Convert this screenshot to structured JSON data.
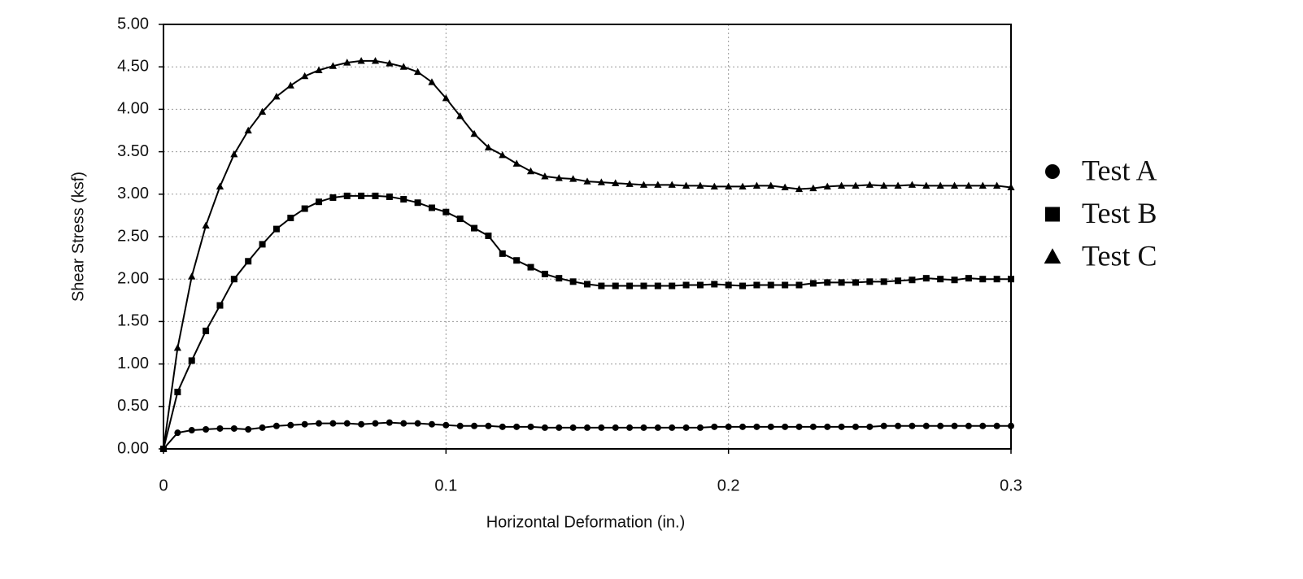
{
  "chart_data": {
    "type": "line",
    "x_label": "Horizontal Deformation (in.)",
    "y_label": "Shear Stress (ksf)",
    "x": [
      0,
      0.005,
      0.01,
      0.015,
      0.02,
      0.025,
      0.03,
      0.035,
      0.04,
      0.045,
      0.05,
      0.055,
      0.06,
      0.065,
      0.07,
      0.075,
      0.08,
      0.085,
      0.09,
      0.095,
      0.1,
      0.105,
      0.11,
      0.115,
      0.12,
      0.125,
      0.13,
      0.135,
      0.14,
      0.145,
      0.15,
      0.155,
      0.16,
      0.165,
      0.17,
      0.175,
      0.18,
      0.185,
      0.19,
      0.195,
      0.2,
      0.205,
      0.21,
      0.215,
      0.22,
      0.225,
      0.23,
      0.235,
      0.24,
      0.245,
      0.25,
      0.255,
      0.26,
      0.265,
      0.27,
      0.275,
      0.28,
      0.285,
      0.29,
      0.295,
      0.3
    ],
    "series": [
      {
        "name": "Test A",
        "color": "#000000",
        "marker": "circle",
        "values": [
          0,
          0.19,
          0.22,
          0.23,
          0.24,
          0.24,
          0.23,
          0.25,
          0.27,
          0.28,
          0.29,
          0.3,
          0.3,
          0.3,
          0.29,
          0.3,
          0.31,
          0.3,
          0.3,
          0.29,
          0.28,
          0.27,
          0.27,
          0.27,
          0.26,
          0.26,
          0.26,
          0.25,
          0.25,
          0.25,
          0.25,
          0.25,
          0.25,
          0.25,
          0.25,
          0.25,
          0.25,
          0.25,
          0.25,
          0.26,
          0.26,
          0.26,
          0.26,
          0.26,
          0.26,
          0.26,
          0.26,
          0.26,
          0.26,
          0.26,
          0.26,
          0.27,
          0.27,
          0.27,
          0.27,
          0.27,
          0.27,
          0.27,
          0.27,
          0.27,
          0.27
        ]
      },
      {
        "name": "Test B",
        "color": "#000000",
        "marker": "square",
        "values": [
          0,
          0.67,
          1.04,
          1.39,
          1.69,
          2.0,
          2.21,
          2.41,
          2.59,
          2.72,
          2.83,
          2.91,
          2.96,
          2.98,
          2.98,
          2.98,
          2.97,
          2.94,
          2.9,
          2.84,
          2.79,
          2.71,
          2.6,
          2.51,
          2.3,
          2.22,
          2.14,
          2.06,
          2.01,
          1.97,
          1.94,
          1.92,
          1.92,
          1.92,
          1.92,
          1.92,
          1.92,
          1.93,
          1.93,
          1.94,
          1.93,
          1.92,
          1.93,
          1.93,
          1.93,
          1.93,
          1.95,
          1.96,
          1.96,
          1.96,
          1.97,
          1.97,
          1.98,
          1.99,
          2.01,
          2.0,
          1.99,
          2.01,
          2.0,
          2.0,
          2.0
        ]
      },
      {
        "name": "Test C",
        "color": "#000000",
        "marker": "triangle",
        "values": [
          0,
          1.19,
          2.03,
          2.63,
          3.09,
          3.47,
          3.75,
          3.97,
          4.15,
          4.28,
          4.39,
          4.46,
          4.51,
          4.55,
          4.57,
          4.57,
          4.54,
          4.5,
          4.44,
          4.32,
          4.13,
          3.92,
          3.71,
          3.55,
          3.46,
          3.36,
          3.27,
          3.21,
          3.19,
          3.18,
          3.15,
          3.14,
          3.13,
          3.12,
          3.11,
          3.11,
          3.11,
          3.1,
          3.1,
          3.09,
          3.09,
          3.09,
          3.1,
          3.1,
          3.08,
          3.06,
          3.07,
          3.09,
          3.1,
          3.1,
          3.11,
          3.1,
          3.1,
          3.11,
          3.1,
          3.1,
          3.1,
          3.1,
          3.1,
          3.1,
          3.08
        ]
      }
    ],
    "xlim": [
      0,
      0.3
    ],
    "xticks": [
      0,
      0.1,
      0.2,
      0.3
    ],
    "ylim": [
      0,
      5
    ],
    "yticks": [
      {
        "value": 0,
        "label": "0.00"
      },
      {
        "value": 0.5,
        "label": "0.50"
      },
      {
        "value": 1,
        "label": "1.00"
      },
      {
        "value": 1.5,
        "label": "1.50"
      },
      {
        "value": 2,
        "label": "2.00"
      },
      {
        "value": 2.5,
        "label": "2.50"
      },
      {
        "value": 3,
        "label": "3.00"
      },
      {
        "value": 3.5,
        "label": "3.50"
      },
      {
        "value": 4,
        "label": "4.00"
      },
      {
        "value": 4.5,
        "label": "4.50"
      },
      {
        "value": 5,
        "label": "5.00"
      }
    ],
    "grid": true,
    "legend": "right"
  }
}
